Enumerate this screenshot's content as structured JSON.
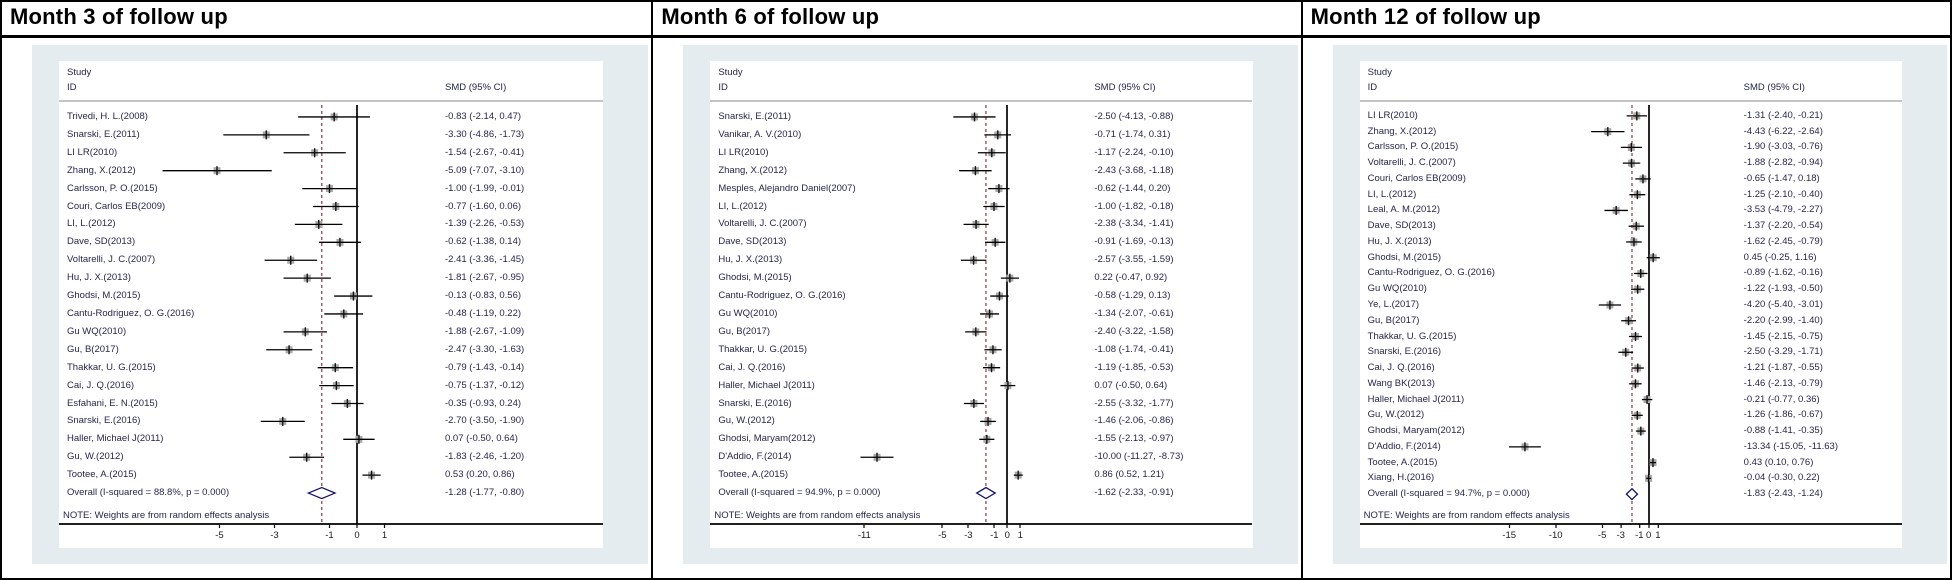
{
  "colors": {
    "panel_background": "#e4ecef",
    "plot_background": "#ffffff",
    "text": "#26264a",
    "ci_line": "#000000",
    "marker_fill": "#a9a9a9",
    "marker_cross": "#111111",
    "zero_line": "#000000",
    "reference_dashed_line": "#90353b",
    "diamond_outline": "#141464",
    "separator_line": "#8a8a8a",
    "axis_line": "#000000"
  },
  "chart_data": [
    {
      "type": "forest",
      "title": "Month 3 of follow up",
      "col_header_line1": "Study",
      "col_header_line2": "ID",
      "effect_header": "SMD (95% CI)",
      "note": "NOTE: Weights are from random effects analysis",
      "ticks": [
        -5,
        -3,
        -1,
        0,
        1
      ],
      "overall_label": "Overall  (I-squared = 88.8%, p = 0.000)",
      "overall": {
        "est": -1.28,
        "lo": -1.77,
        "hi": -0.8,
        "label": "-1.28 (-1.77, -0.80)"
      },
      "studies": [
        {
          "id": "Trivedi, H. L.(2008)",
          "est": -0.83,
          "lo": -2.14,
          "hi": 0.47,
          "label": "-0.83 (-2.14, 0.47)"
        },
        {
          "id": "Snarski, E.(2011)",
          "est": -3.3,
          "lo": -4.86,
          "hi": -1.73,
          "label": "-3.30 (-4.86, -1.73)"
        },
        {
          "id": "LI LR(2010)",
          "est": -1.54,
          "lo": -2.67,
          "hi": -0.41,
          "label": "-1.54 (-2.67, -0.41)"
        },
        {
          "id": "Zhang, X.(2012)",
          "est": -5.09,
          "lo": -7.07,
          "hi": -3.1,
          "label": "-5.09 (-7.07, -3.10)"
        },
        {
          "id": "Carlsson, P. O.(2015)",
          "est": -1.0,
          "lo": -1.99,
          "hi": -0.01,
          "label": "-1.00 (-1.99, -0.01)"
        },
        {
          "id": "Couri, Carlos EB(2009)",
          "est": -0.77,
          "lo": -1.6,
          "hi": 0.06,
          "label": "-0.77 (-1.60, 0.06)"
        },
        {
          "id": "LI, L.(2012)",
          "est": -1.39,
          "lo": -2.26,
          "hi": -0.53,
          "label": "-1.39 (-2.26, -0.53)"
        },
        {
          "id": "Dave, SD(2013)",
          "est": -0.62,
          "lo": -1.38,
          "hi": 0.14,
          "label": "-0.62 (-1.38, 0.14)"
        },
        {
          "id": "Voltarelli, J. C.(2007)",
          "est": -2.41,
          "lo": -3.36,
          "hi": -1.45,
          "label": "-2.41 (-3.36, -1.45)"
        },
        {
          "id": "Hu, J. X.(2013)",
          "est": -1.81,
          "lo": -2.67,
          "hi": -0.95,
          "label": "-1.81 (-2.67, -0.95)"
        },
        {
          "id": "Ghodsi, M.(2015)",
          "est": -0.13,
          "lo": -0.83,
          "hi": 0.56,
          "label": "-0.13 (-0.83, 0.56)"
        },
        {
          "id": "Cantu-Rodriguez, O. G.(2016)",
          "est": -0.48,
          "lo": -1.19,
          "hi": 0.22,
          "label": "-0.48 (-1.19, 0.22)"
        },
        {
          "id": "Gu WQ(2010)",
          "est": -1.88,
          "lo": -2.67,
          "hi": -1.09,
          "label": "-1.88 (-2.67, -1.09)"
        },
        {
          "id": "Gu, B(2017)",
          "est": -2.47,
          "lo": -3.3,
          "hi": -1.63,
          "label": "-2.47 (-3.30, -1.63)"
        },
        {
          "id": "Thakkar, U. G.(2015)",
          "est": -0.79,
          "lo": -1.43,
          "hi": -0.14,
          "label": "-0.79 (-1.43, -0.14)"
        },
        {
          "id": "Cai, J. Q.(2016)",
          "est": -0.75,
          "lo": -1.37,
          "hi": -0.12,
          "label": "-0.75 (-1.37, -0.12)"
        },
        {
          "id": "Esfahani, E. N.(2015)",
          "est": -0.35,
          "lo": -0.93,
          "hi": 0.24,
          "label": "-0.35 (-0.93, 0.24)"
        },
        {
          "id": "Snarski, E.(2016)",
          "est": -2.7,
          "lo": -3.5,
          "hi": -1.9,
          "label": "-2.70 (-3.50, -1.90)"
        },
        {
          "id": "Haller, Michael J(2011)",
          "est": 0.07,
          "lo": -0.5,
          "hi": 0.64,
          "label": "0.07 (-0.50, 0.64)"
        },
        {
          "id": "Gu, W.(2012)",
          "est": -1.83,
          "lo": -2.46,
          "hi": -1.2,
          "label": "-1.83 (-2.46, -1.20)"
        },
        {
          "id": "Tootee, A.(2015)",
          "est": 0.53,
          "lo": 0.2,
          "hi": 0.86,
          "label": "0.53 (0.20, 0.86)"
        }
      ]
    },
    {
      "type": "forest",
      "title": "Month 6 of follow up",
      "col_header_line1": "Study",
      "col_header_line2": "ID",
      "effect_header": "SMD (95% CI)",
      "note": "NOTE: Weights are from random effects analysis",
      "ticks": [
        -11,
        -5,
        -3,
        -1,
        0,
        1
      ],
      "overall_label": "Overall  (I-squared = 94.9%, p = 0.000)",
      "overall": {
        "est": -1.62,
        "lo": -2.33,
        "hi": -0.91,
        "label": "-1.62 (-2.33, -0.91)"
      },
      "studies": [
        {
          "id": "Snarski, E.(2011)",
          "est": -2.5,
          "lo": -4.13,
          "hi": -0.88,
          "label": "-2.50 (-4.13, -0.88)"
        },
        {
          "id": "Vanikar, A. V.(2010)",
          "est": -0.71,
          "lo": -1.74,
          "hi": 0.31,
          "label": "-0.71 (-1.74, 0.31)"
        },
        {
          "id": "LI LR(2010)",
          "est": -1.17,
          "lo": -2.24,
          "hi": -0.1,
          "label": "-1.17 (-2.24, -0.10)"
        },
        {
          "id": "Zhang, X.(2012)",
          "est": -2.43,
          "lo": -3.68,
          "hi": -1.18,
          "label": "-2.43 (-3.68, -1.18)"
        },
        {
          "id": "Mesples, Alejandro Daniel(2007)",
          "est": -0.62,
          "lo": -1.44,
          "hi": 0.2,
          "label": "-0.62 (-1.44, 0.20)"
        },
        {
          "id": "LI, L.(2012)",
          "est": -1.0,
          "lo": -1.82,
          "hi": -0.18,
          "label": "-1.00 (-1.82, -0.18)"
        },
        {
          "id": "Voltarelli, J. C.(2007)",
          "est": -2.38,
          "lo": -3.34,
          "hi": -1.41,
          "label": "-2.38 (-3.34, -1.41)"
        },
        {
          "id": "Dave, SD(2013)",
          "est": -0.91,
          "lo": -1.69,
          "hi": -0.13,
          "label": "-0.91 (-1.69, -0.13)"
        },
        {
          "id": "Hu, J. X.(2013)",
          "est": -2.57,
          "lo": -3.55,
          "hi": -1.59,
          "label": "-2.57 (-3.55, -1.59)"
        },
        {
          "id": "Ghodsi, M.(2015)",
          "est": 0.22,
          "lo": -0.47,
          "hi": 0.92,
          "label": "0.22 (-0.47, 0.92)"
        },
        {
          "id": "Cantu-Rodriguez, O. G.(2016)",
          "est": -0.58,
          "lo": -1.29,
          "hi": 0.13,
          "label": "-0.58 (-1.29, 0.13)"
        },
        {
          "id": "Gu WQ(2010)",
          "est": -1.34,
          "lo": -2.07,
          "hi": -0.61,
          "label": "-1.34 (-2.07, -0.61)"
        },
        {
          "id": "Gu, B(2017)",
          "est": -2.4,
          "lo": -3.22,
          "hi": -1.58,
          "label": "-2.40 (-3.22, -1.58)"
        },
        {
          "id": "Thakkar, U. G.(2015)",
          "est": -1.08,
          "lo": -1.74,
          "hi": -0.41,
          "label": "-1.08 (-1.74, -0.41)"
        },
        {
          "id": "Cai, J. Q.(2016)",
          "est": -1.19,
          "lo": -1.85,
          "hi": -0.53,
          "label": "-1.19 (-1.85, -0.53)"
        },
        {
          "id": "Haller, Michael J(2011)",
          "est": 0.07,
          "lo": -0.5,
          "hi": 0.64,
          "label": "0.07 (-0.50, 0.64)"
        },
        {
          "id": "Snarski, E.(2016)",
          "est": -2.55,
          "lo": -3.32,
          "hi": -1.77,
          "label": "-2.55 (-3.32, -1.77)"
        },
        {
          "id": "Gu, W.(2012)",
          "est": -1.46,
          "lo": -2.06,
          "hi": -0.86,
          "label": "-1.46 (-2.06, -0.86)"
        },
        {
          "id": "Ghodsi, Maryam(2012)",
          "est": -1.55,
          "lo": -2.13,
          "hi": -0.97,
          "label": "-1.55 (-2.13, -0.97)"
        },
        {
          "id": "D'Addio, F.(2014)",
          "est": -10.0,
          "lo": -11.27,
          "hi": -8.73,
          "label": "-10.00 (-11.27, -8.73)"
        },
        {
          "id": "Tootee, A.(2015)",
          "est": 0.86,
          "lo": 0.52,
          "hi": 1.21,
          "label": "0.86 (0.52, 1.21)"
        }
      ]
    },
    {
      "type": "forest",
      "title": "Month 12 of follow up",
      "col_header_line1": "Study",
      "col_header_line2": "ID",
      "effect_header": "SMD (95% CI)",
      "note": "NOTE: Weights are from random effects analysis",
      "ticks": [
        -15,
        -10,
        -5,
        -3,
        -1,
        0,
        1
      ],
      "overall_label": "Overall  (I-squared = 94.7%, p = 0.000)",
      "overall": {
        "est": -1.83,
        "lo": -2.43,
        "hi": -1.24,
        "label": "-1.83 (-2.43, -1.24)"
      },
      "studies": [
        {
          "id": "LI LR(2010)",
          "est": -1.31,
          "lo": -2.4,
          "hi": -0.21,
          "label": "-1.31 (-2.40, -0.21)"
        },
        {
          "id": "Zhang, X.(2012)",
          "est": -4.43,
          "lo": -6.22,
          "hi": -2.64,
          "label": "-4.43 (-6.22, -2.64)"
        },
        {
          "id": "Carlsson, P. O.(2015)",
          "est": -1.9,
          "lo": -3.03,
          "hi": -0.76,
          "label": "-1.90 (-3.03, -0.76)"
        },
        {
          "id": "Voltarelli, J. C.(2007)",
          "est": -1.88,
          "lo": -2.82,
          "hi": -0.94,
          "label": "-1.88 (-2.82, -0.94)"
        },
        {
          "id": "Couri, Carlos EB(2009)",
          "est": -0.65,
          "lo": -1.47,
          "hi": 0.18,
          "label": "-0.65 (-1.47, 0.18)"
        },
        {
          "id": "LI, L.(2012)",
          "est": -1.25,
          "lo": -2.1,
          "hi": -0.4,
          "label": "-1.25 (-2.10, -0.40)"
        },
        {
          "id": "Leal, A. M.(2012)",
          "est": -3.53,
          "lo": -4.79,
          "hi": -2.27,
          "label": "-3.53 (-4.79, -2.27)"
        },
        {
          "id": "Dave, SD(2013)",
          "est": -1.37,
          "lo": -2.2,
          "hi": -0.54,
          "label": "-1.37 (-2.20, -0.54)"
        },
        {
          "id": "Hu, J. X.(2013)",
          "est": -1.62,
          "lo": -2.45,
          "hi": -0.79,
          "label": "-1.62 (-2.45, -0.79)"
        },
        {
          "id": "Ghodsi, M.(2015)",
          "est": 0.45,
          "lo": -0.25,
          "hi": 1.16,
          "label": "0.45 (-0.25, 1.16)"
        },
        {
          "id": "Cantu-Rodriguez, O. G.(2016)",
          "est": -0.89,
          "lo": -1.62,
          "hi": -0.16,
          "label": "-0.89 (-1.62, -0.16)"
        },
        {
          "id": "Gu WQ(2010)",
          "est": -1.22,
          "lo": -1.93,
          "hi": -0.5,
          "label": "-1.22 (-1.93, -0.50)"
        },
        {
          "id": "Ye, L.(2017)",
          "est": -4.2,
          "lo": -5.4,
          "hi": -3.01,
          "label": "-4.20 (-5.40, -3.01)"
        },
        {
          "id": "Gu, B(2017)",
          "est": -2.2,
          "lo": -2.99,
          "hi": -1.4,
          "label": "-2.20 (-2.99, -1.40)"
        },
        {
          "id": "Thakkar, U. G.(2015)",
          "est": -1.45,
          "lo": -2.15,
          "hi": -0.75,
          "label": "-1.45 (-2.15, -0.75)"
        },
        {
          "id": "Snarski, E.(2016)",
          "est": -2.5,
          "lo": -3.29,
          "hi": -1.71,
          "label": "-2.50 (-3.29, -1.71)"
        },
        {
          "id": "Cai, J. Q.(2016)",
          "est": -1.21,
          "lo": -1.87,
          "hi": -0.55,
          "label": "-1.21 (-1.87, -0.55)"
        },
        {
          "id": "Wang BK(2013)",
          "est": -1.46,
          "lo": -2.13,
          "hi": -0.79,
          "label": "-1.46 (-2.13, -0.79)"
        },
        {
          "id": "Haller, Michael J(2011)",
          "est": -0.21,
          "lo": -0.77,
          "hi": 0.36,
          "label": "-0.21 (-0.77, 0.36)"
        },
        {
          "id": "Gu, W.(2012)",
          "est": -1.26,
          "lo": -1.86,
          "hi": -0.67,
          "label": "-1.26 (-1.86, -0.67)"
        },
        {
          "id": "Ghodsi, Maryam(2012)",
          "est": -0.88,
          "lo": -1.41,
          "hi": -0.35,
          "label": "-0.88 (-1.41, -0.35)"
        },
        {
          "id": "D'Addio, F.(2014)",
          "est": -13.34,
          "lo": -15.05,
          "hi": -11.63,
          "label": "-13.34 (-15.05, -11.63)"
        },
        {
          "id": "Tootee, A.(2015)",
          "est": 0.43,
          "lo": 0.1,
          "hi": 0.76,
          "label": "0.43 (0.10, 0.76)"
        },
        {
          "id": "Xiang, H.(2016)",
          "est": -0.04,
          "lo": -0.3,
          "hi": 0.22,
          "label": "-0.04 (-0.30, 0.22)"
        }
      ]
    }
  ]
}
